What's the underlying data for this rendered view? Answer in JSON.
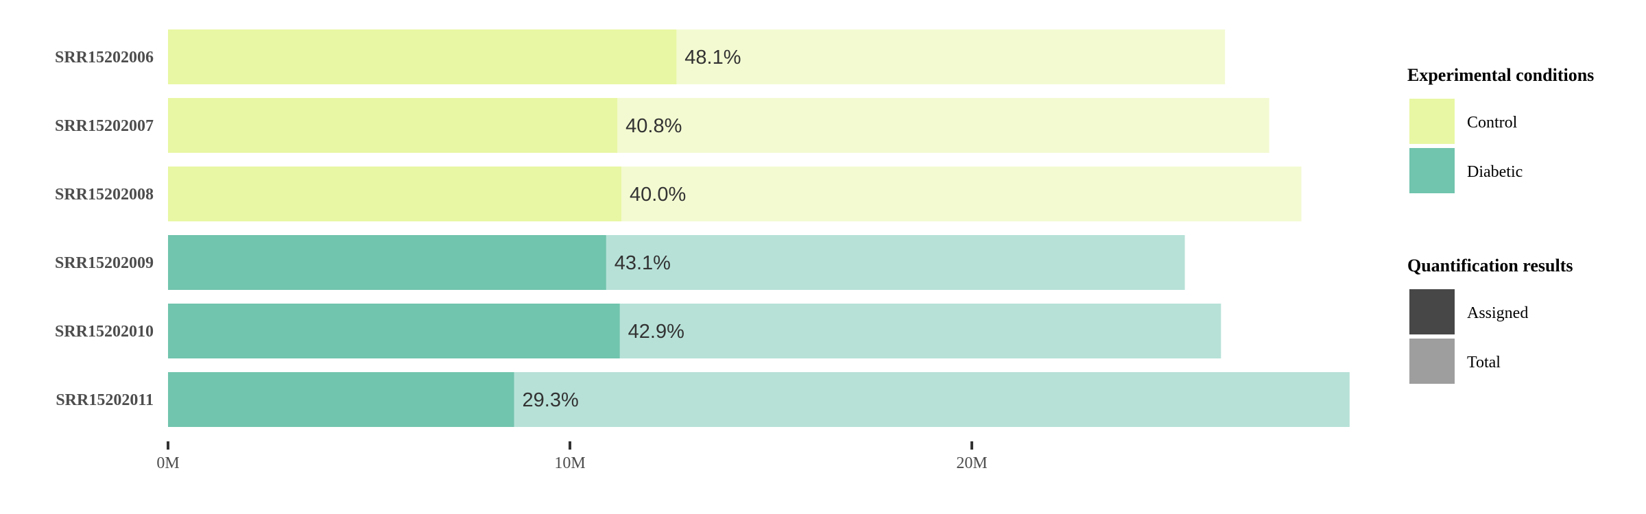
{
  "chart_data": {
    "type": "bar",
    "orientation": "horizontal",
    "categories": [
      "SRR15202006",
      "SRR15202007",
      "SRR15202008",
      "SRR15202009",
      "SRR15202010",
      "SRR15202011"
    ],
    "conditions": [
      "Control",
      "Control",
      "Control",
      "Diabetic",
      "Diabetic",
      "Diabetic"
    ],
    "series": [
      {
        "name": "Total",
        "values": [
          26.3,
          27.4,
          28.2,
          25.3,
          26.2,
          29.4
        ]
      },
      {
        "name": "Assigned",
        "values": [
          12.65,
          11.18,
          11.28,
          10.9,
          11.24,
          8.61
        ]
      }
    ],
    "data_labels": [
      "48.1%",
      "40.8%",
      "40.0%",
      "43.1%",
      "42.9%",
      "29.3%"
    ],
    "x_ticks": [
      {
        "value": 0,
        "label": "0M"
      },
      {
        "value": 10,
        "label": "10M"
      },
      {
        "value": 20,
        "label": "20M"
      }
    ],
    "xlim": [
      0,
      29.4
    ],
    "grid": false,
    "legend_position": "right",
    "legends": [
      {
        "title": "Experimental conditions",
        "entries": [
          {
            "label": "Control",
            "color": "#e8f7a3"
          },
          {
            "label": "Diabetic",
            "color": "#71c4ad"
          }
        ]
      },
      {
        "title": "Quantification results",
        "entries": [
          {
            "label": "Assigned",
            "color": "#474747"
          },
          {
            "label": "Total",
            "color": "#9e9e9e"
          }
        ]
      }
    ],
    "colors": {
      "Control": {
        "assigned": "#e8f7a3",
        "total": "#f3fad1"
      },
      "Diabetic": {
        "assigned": "#71c4ad",
        "total": "#b7e1d7"
      }
    }
  }
}
